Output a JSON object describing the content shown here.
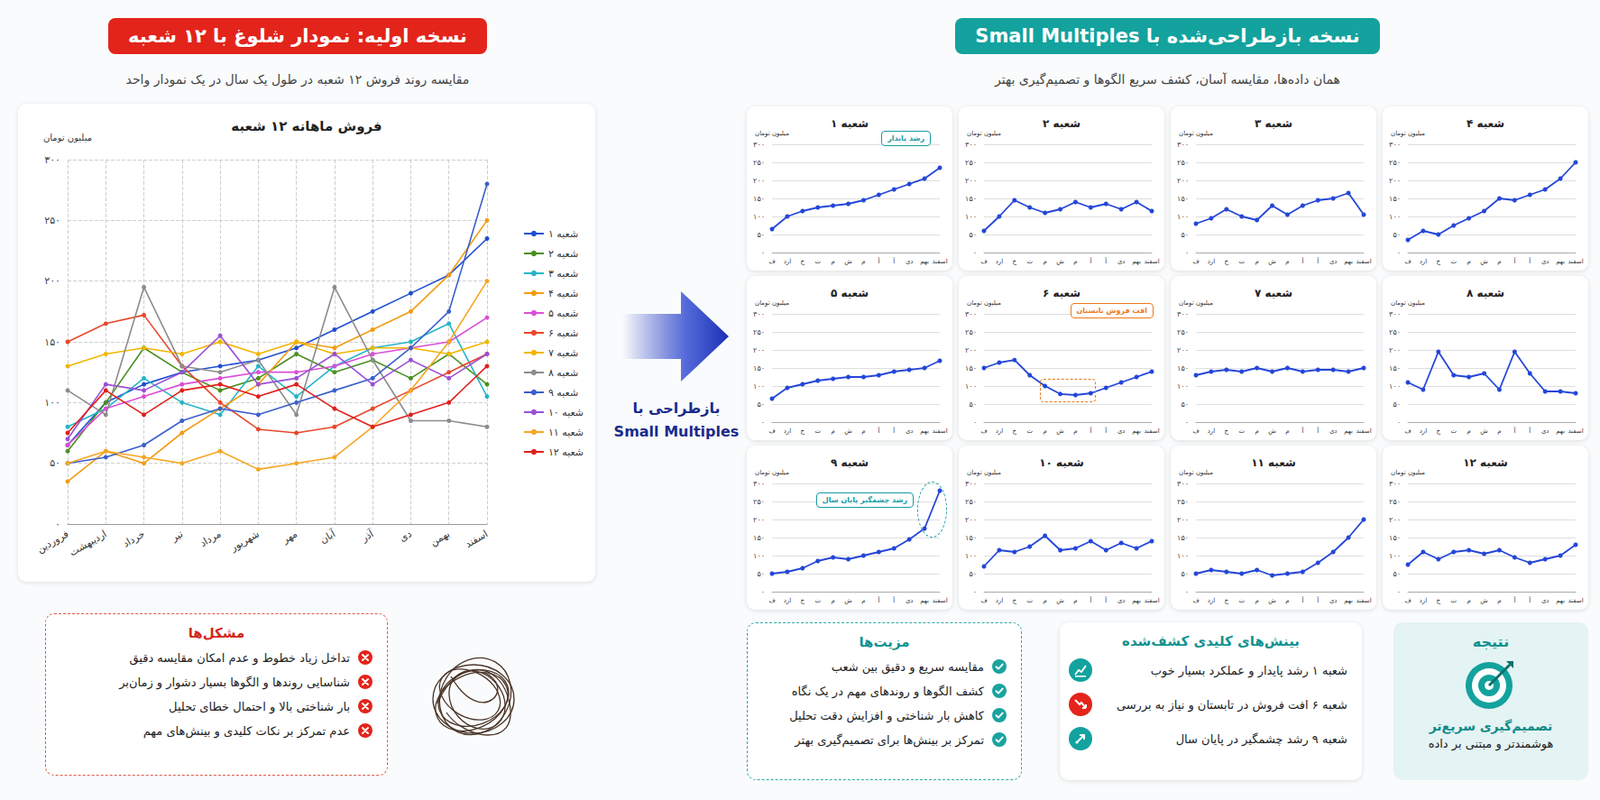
{
  "left_panel": {
    "title": "نسخه اولیه: نمودار شلوغ با ۱۲ شعبه",
    "subtitle": "مقایسه روند فروش ۱۲ شعبه در طول یک سال در یک نمودار واحد"
  },
  "problems": {
    "title": "مشکل‌ها",
    "items": [
      "تداخل زیاد خطوط و عدم امکان مقایسه دقیق",
      "شناسایی روندها و الگوها بسیار دشوار و زمان‌بر",
      "بار شناختی بالا و احتمال خطای تحلیل",
      "عدم تمرکز بر نکات کلیدی و بینش‌های مهم"
    ]
  },
  "arrow_label": [
    "بازطراحی با",
    "Small Multiples"
  ],
  "right_panel": {
    "title": "نسخه بازطراحی‌شده با Small Multiples",
    "subtitle": "همان داده‌ها، مقایسه آسان، کشف سریع الگوها و تصمیم‌گیری بهتر"
  },
  "advantages": {
    "title": "مزیت‌ها",
    "items": [
      "مقایسه سریع و دقیق بین شعب",
      "کشف الگوها و روندهای مهم در یک نگاه",
      "کاهش بار شناختی و افزایش دقت تحلیل",
      "تمرکز بر بینش‌ها برای تصمیم‌گیری بهتر"
    ]
  },
  "insights": {
    "title": "بینش‌های کلیدی کشف‌شده",
    "items": [
      "شعبه ۱ رشد پایدار و عملکرد بسیار خوب",
      "شعبه ۶ افت فروش در تابستان و نیاز به بررسی",
      "شعبه ۹ رشد چشمگیر در پایان سال"
    ]
  },
  "result": {
    "title": "نتیجه",
    "lines": [
      "تصمیم‌گیری سریع‌تر",
      "هوشمندتر و مبتنی بر داده"
    ]
  },
  "chart_data": [
    {
      "type": "line",
      "title": "فروش ماهانه ۱۲ شعبه",
      "y_label": "میلیون تومان",
      "categories": [
        "فروردین",
        "اردیبهشت",
        "خرداد",
        "تیر",
        "مرداد",
        "شهریور",
        "مهر",
        "آبان",
        "آذر",
        "دی",
        "بهمن",
        "اسفند"
      ],
      "series": [
        {
          "name": "شعبه ۱",
          "color": "#1f4fd1",
          "values": [
            65,
            100,
            115,
            125,
            130,
            135,
            145,
            160,
            175,
            190,
            205,
            235
          ]
        },
        {
          "name": "شعبه ۲",
          "color": "#4a8f1f",
          "values": [
            60,
            100,
            145,
            125,
            110,
            120,
            140,
            125,
            135,
            120,
            140,
            115
          ]
        },
        {
          "name": "شعبه ۳",
          "color": "#26b5c7",
          "values": [
            80,
            95,
            120,
            100,
            90,
            130,
            105,
            130,
            145,
            150,
            165,
            105
          ]
        },
        {
          "name": "شعبه ۴",
          "color": "#f39c12",
          "values": [
            35,
            60,
            50,
            75,
            95,
            115,
            150,
            145,
            160,
            175,
            205,
            250
          ]
        },
        {
          "name": "شعبه ۵",
          "color": "#d94fd6",
          "values": [
            65,
            95,
            105,
            115,
            120,
            125,
            125,
            130,
            140,
            145,
            150,
            170
          ]
        },
        {
          "name": "شعبه ۶",
          "color": "#e8472a",
          "values": [
            150,
            165,
            172,
            130,
            100,
            78,
            75,
            80,
            95,
            110,
            125,
            140
          ]
        },
        {
          "name": "شعبه ۷",
          "color": "#f2b600",
          "values": [
            130,
            140,
            145,
            140,
            150,
            140,
            150,
            140,
            145,
            145,
            140,
            150
          ]
        },
        {
          "name": "شعبه ۸",
          "color": "#8c8c8c",
          "values": [
            110,
            90,
            195,
            130,
            125,
            135,
            90,
            195,
            135,
            85,
            85,
            80
          ]
        },
        {
          "name": "شعبه ۹",
          "color": "#3a5fcd",
          "values": [
            50,
            55,
            65,
            85,
            95,
            90,
            100,
            110,
            120,
            145,
            175,
            280
          ]
        },
        {
          "name": "شعبه ۱۰",
          "color": "#9b4fd6",
          "values": [
            70,
            115,
            110,
            125,
            155,
            115,
            120,
            140,
            115,
            135,
            120,
            140
          ]
        },
        {
          "name": "شعبه ۱۱",
          "color": "#f5a623",
          "values": [
            50,
            60,
            55,
            50,
            60,
            45,
            50,
            55,
            80,
            110,
            150,
            200
          ]
        },
        {
          "name": "شعبه ۱۲",
          "color": "#e0201b",
          "values": [
            75,
            110,
            90,
            110,
            115,
            105,
            115,
            95,
            80,
            90,
            100,
            130
          ]
        }
      ],
      "ylim": [
        0,
        300
      ],
      "yticks": [
        {
          "value": 0,
          "label": "۰"
        },
        {
          "value": 50,
          "label": "۵۰"
        },
        {
          "value": 100,
          "label": "۱۰۰"
        },
        {
          "value": 150,
          "label": "۱۵۰"
        },
        {
          "value": 200,
          "label": "۲۰۰"
        },
        {
          "value": 250,
          "label": "۲۵۰"
        },
        {
          "value": 300,
          "label": "۳۰۰"
        }
      ],
      "grid": true,
      "legend": "right",
      "marker": "circle"
    },
    {
      "type": "line",
      "title": "شعبه ۱",
      "y_label": "میلیون تومان",
      "categories": [
        "ف",
        "ارد",
        "خ",
        "ت",
        "م",
        "ش",
        "م",
        "آ",
        "آ",
        "دی",
        "بهم",
        "اسفند"
      ],
      "values": [
        65,
        100,
        115,
        125,
        130,
        135,
        145,
        160,
        175,
        190,
        205,
        235
      ],
      "color": "#2446d8",
      "ylim": [
        0,
        300
      ],
      "yticks": [
        {
          "value": 0,
          "label": "۰"
        },
        {
          "value": 50,
          "label": "۵۰"
        },
        {
          "value": 100,
          "label": "۱۰۰"
        },
        {
          "value": 150,
          "label": "۱۵۰"
        },
        {
          "value": 200,
          "label": "۲۰۰"
        },
        {
          "value": 250,
          "label": "۲۵۰"
        },
        {
          "value": 300,
          "label": "۳۰۰"
        }
      ],
      "grid": true,
      "marker": "circle",
      "annotation": {
        "text": "رشد پایدار",
        "color": "#159aa5"
      }
    },
    {
      "type": "line",
      "title": "شعبه ۲",
      "y_label": "میلیون تومان",
      "categories": [
        "ف",
        "ارد",
        "خ",
        "ت",
        "م",
        "ش",
        "م",
        "آ",
        "آ",
        "دی",
        "بهم",
        "اسفند"
      ],
      "values": [
        60,
        100,
        145,
        125,
        110,
        120,
        140,
        125,
        135,
        120,
        140,
        115
      ],
      "color": "#2446d8",
      "ylim": [
        0,
        300
      ],
      "yticks": [
        {
          "value": 0,
          "label": "۰"
        },
        {
          "value": 50,
          "label": "۵۰"
        },
        {
          "value": 100,
          "label": "۱۰۰"
        },
        {
          "value": 150,
          "label": "۱۵۰"
        },
        {
          "value": 200,
          "label": "۲۰۰"
        },
        {
          "value": 250,
          "label": "۲۵۰"
        },
        {
          "value": 300,
          "label": "۳۰۰"
        }
      ],
      "grid": true,
      "marker": "circle"
    },
    {
      "type": "line",
      "title": "شعبه ۳",
      "y_label": "میلیون تومان",
      "categories": [
        "ف",
        "ارد",
        "خ",
        "ت",
        "م",
        "ش",
        "م",
        "آ",
        "آ",
        "دی",
        "بهم",
        "اسفند"
      ],
      "values": [
        80,
        95,
        120,
        100,
        90,
        130,
        105,
        130,
        145,
        150,
        165,
        105
      ],
      "color": "#2446d8",
      "ylim": [
        0,
        300
      ],
      "yticks": [
        {
          "value": 0,
          "label": "۰"
        },
        {
          "value": 50,
          "label": "۵۰"
        },
        {
          "value": 100,
          "label": "۱۰۰"
        },
        {
          "value": 150,
          "label": "۱۵۰"
        },
        {
          "value": 200,
          "label": "۲۰۰"
        },
        {
          "value": 250,
          "label": "۲۵۰"
        },
        {
          "value": 300,
          "label": "۳۰۰"
        }
      ],
      "grid": true,
      "marker": "circle"
    },
    {
      "type": "line",
      "title": "شعبه ۴",
      "y_label": "میلیون تومان",
      "categories": [
        "ف",
        "ارد",
        "خ",
        "ت",
        "م",
        "ش",
        "م",
        "آ",
        "آ",
        "دی",
        "بهم",
        "اسفند"
      ],
      "values": [
        35,
        60,
        50,
        75,
        95,
        115,
        150,
        145,
        160,
        175,
        205,
        250
      ],
      "color": "#2446d8",
      "ylim": [
        0,
        300
      ],
      "yticks": [
        {
          "value": 0,
          "label": "۰"
        },
        {
          "value": 50,
          "label": "۵۰"
        },
        {
          "value": 100,
          "label": "۱۰۰"
        },
        {
          "value": 150,
          "label": "۱۵۰"
        },
        {
          "value": 200,
          "label": "۲۰۰"
        },
        {
          "value": 250,
          "label": "۲۵۰"
        },
        {
          "value": 300,
          "label": "۳۰۰"
        }
      ],
      "grid": true,
      "marker": "circle"
    },
    {
      "type": "line",
      "title": "شعبه ۵",
      "y_label": "میلیون تومان",
      "categories": [
        "ف",
        "ارد",
        "خ",
        "ت",
        "م",
        "ش",
        "م",
        "آ",
        "آ",
        "دی",
        "بهم",
        "اسفند"
      ],
      "values": [
        65,
        95,
        105,
        115,
        120,
        125,
        125,
        130,
        140,
        145,
        150,
        170
      ],
      "color": "#2446d8",
      "ylim": [
        0,
        300
      ],
      "yticks": [
        {
          "value": 0,
          "label": "۰"
        },
        {
          "value": 50,
          "label": "۵۰"
        },
        {
          "value": 100,
          "label": "۱۰۰"
        },
        {
          "value": 150,
          "label": "۱۵۰"
        },
        {
          "value": 200,
          "label": "۲۰۰"
        },
        {
          "value": 250,
          "label": "۲۵۰"
        },
        {
          "value": 300,
          "label": "۳۰۰"
        }
      ],
      "grid": true,
      "marker": "circle"
    },
    {
      "type": "line",
      "title": "شعبه ۶",
      "y_label": "میلیون تومان",
      "categories": [
        "ف",
        "ارد",
        "خ",
        "ت",
        "م",
        "ش",
        "م",
        "آ",
        "آ",
        "دی",
        "بهم",
        "اسفند"
      ],
      "values": [
        150,
        165,
        172,
        130,
        100,
        78,
        75,
        80,
        95,
        110,
        125,
        140
      ],
      "color": "#2446d8",
      "ylim": [
        0,
        300
      ],
      "yticks": [
        {
          "value": 0,
          "label": "۰"
        },
        {
          "value": 50,
          "label": "۵۰"
        },
        {
          "value": 100,
          "label": "۱۰۰"
        },
        {
          "value": 150,
          "label": "۱۵۰"
        },
        {
          "value": 200,
          "label": "۲۰۰"
        },
        {
          "value": 250,
          "label": "۲۵۰"
        },
        {
          "value": 300,
          "label": "۳۰۰"
        }
      ],
      "grid": true,
      "marker": "circle",
      "annotation": {
        "text": "افت فروش تابستان",
        "color": "#ee7a1c"
      }
    },
    {
      "type": "line",
      "title": "شعبه ۷",
      "y_label": "میلیون تومان",
      "categories": [
        "ف",
        "ارد",
        "خ",
        "ت",
        "م",
        "ش",
        "م",
        "آ",
        "آ",
        "دی",
        "بهم",
        "اسفند"
      ],
      "values": [
        130,
        140,
        145,
        140,
        150,
        140,
        150,
        140,
        145,
        145,
        140,
        150
      ],
      "color": "#2446d8",
      "ylim": [
        0,
        300
      ],
      "yticks": [
        {
          "value": 0,
          "label": "۰"
        },
        {
          "value": 50,
          "label": "۵۰"
        },
        {
          "value": 100,
          "label": "۱۰۰"
        },
        {
          "value": 150,
          "label": "۱۵۰"
        },
        {
          "value": 200,
          "label": "۲۰۰"
        },
        {
          "value": 250,
          "label": "۲۵۰"
        },
        {
          "value": 300,
          "label": "۳۰۰"
        }
      ],
      "grid": true,
      "marker": "circle"
    },
    {
      "type": "line",
      "title": "شعبه ۸",
      "y_label": "میلیون تومان",
      "categories": [
        "ف",
        "ارد",
        "خ",
        "ت",
        "م",
        "ش",
        "م",
        "آ",
        "آ",
        "دی",
        "بهم",
        "اسفند"
      ],
      "values": [
        110,
        90,
        195,
        130,
        125,
        135,
        90,
        195,
        135,
        85,
        85,
        80
      ],
      "color": "#2446d8",
      "ylim": [
        0,
        300
      ],
      "yticks": [
        {
          "value": 0,
          "label": "۰"
        },
        {
          "value": 50,
          "label": "۵۰"
        },
        {
          "value": 100,
          "label": "۱۰۰"
        },
        {
          "value": 150,
          "label": "۱۵۰"
        },
        {
          "value": 200,
          "label": "۲۰۰"
        },
        {
          "value": 250,
          "label": "۲۵۰"
        },
        {
          "value": 300,
          "label": "۳۰۰"
        }
      ],
      "grid": true,
      "marker": "circle"
    },
    {
      "type": "line",
      "title": "شعبه ۹",
      "y_label": "میلیون تومان",
      "categories": [
        "ف",
        "ارد",
        "خ",
        "ت",
        "م",
        "ش",
        "م",
        "آ",
        "آ",
        "دی",
        "بهم",
        "اسفند"
      ],
      "values": [
        50,
        55,
        65,
        85,
        95,
        90,
        100,
        110,
        120,
        145,
        175,
        280
      ],
      "color": "#2446d8",
      "ylim": [
        0,
        300
      ],
      "yticks": [
        {
          "value": 0,
          "label": "۰"
        },
        {
          "value": 50,
          "label": "۵۰"
        },
        {
          "value": 100,
          "label": "۱۰۰"
        },
        {
          "value": 150,
          "label": "۱۵۰"
        },
        {
          "value": 200,
          "label": "۲۰۰"
        },
        {
          "value": 250,
          "label": "۲۵۰"
        },
        {
          "value": 300,
          "label": "۳۰۰"
        }
      ],
      "grid": true,
      "marker": "circle",
      "annotation": {
        "text": "رشد چشمگیر پایان سال",
        "color": "#159aa5"
      }
    },
    {
      "type": "line",
      "title": "شعبه ۱۰",
      "y_label": "میلیون تومان",
      "categories": [
        "ف",
        "ارد",
        "خ",
        "ت",
        "م",
        "ش",
        "م",
        "آ",
        "آ",
        "دی",
        "بهم",
        "اسفند"
      ],
      "values": [
        70,
        115,
        110,
        125,
        155,
        115,
        120,
        140,
        115,
        135,
        120,
        140
      ],
      "color": "#2446d8",
      "ylim": [
        0,
        300
      ],
      "yticks": [
        {
          "value": 0,
          "label": "۰"
        },
        {
          "value": 50,
          "label": "۵۰"
        },
        {
          "value": 100,
          "label": "۱۰۰"
        },
        {
          "value": 150,
          "label": "۱۵۰"
        },
        {
          "value": 200,
          "label": "۲۰۰"
        },
        {
          "value": 250,
          "label": "۲۵۰"
        },
        {
          "value": 300,
          "label": "۳۰۰"
        }
      ],
      "grid": true,
      "marker": "circle"
    },
    {
      "type": "line",
      "title": "شعبه ۱۱",
      "y_label": "میلیون تومان",
      "categories": [
        "ف",
        "ارد",
        "خ",
        "ت",
        "م",
        "ش",
        "م",
        "آ",
        "آ",
        "دی",
        "بهم",
        "اسفند"
      ],
      "values": [
        50,
        60,
        55,
        50,
        60,
        45,
        50,
        55,
        80,
        110,
        150,
        200
      ],
      "color": "#2446d8",
      "ylim": [
        0,
        300
      ],
      "yticks": [
        {
          "value": 0,
          "label": "۰"
        },
        {
          "value": 50,
          "label": "۵۰"
        },
        {
          "value": 100,
          "label": "۱۰۰"
        },
        {
          "value": 150,
          "label": "۱۵۰"
        },
        {
          "value": 200,
          "label": "۲۰۰"
        },
        {
          "value": 250,
          "label": "۲۵۰"
        },
        {
          "value": 300,
          "label": "۳۰۰"
        }
      ],
      "grid": true,
      "marker": "circle"
    },
    {
      "type": "line",
      "title": "شعبه ۱۲",
      "y_label": "میلیون تومان",
      "categories": [
        "ف",
        "ارد",
        "خ",
        "ت",
        "م",
        "ش",
        "م",
        "آ",
        "آ",
        "دی",
        "بهم",
        "اسفند"
      ],
      "values": [
        75,
        110,
        90,
        110,
        115,
        105,
        115,
        95,
        80,
        90,
        100,
        130
      ],
      "color": "#2446d8",
      "ylim": [
        0,
        300
      ],
      "yticks": [
        {
          "value": 0,
          "label": "۰"
        },
        {
          "value": 50,
          "label": "۵۰"
        },
        {
          "value": 100,
          "label": "۱۰۰"
        },
        {
          "value": 150,
          "label": "۱۵۰"
        },
        {
          "value": 200,
          "label": "۲۰۰"
        },
        {
          "value": 250,
          "label": "۲۵۰"
        },
        {
          "value": 300,
          "label": "۳۰۰"
        }
      ],
      "grid": true,
      "marker": "circle"
    }
  ]
}
